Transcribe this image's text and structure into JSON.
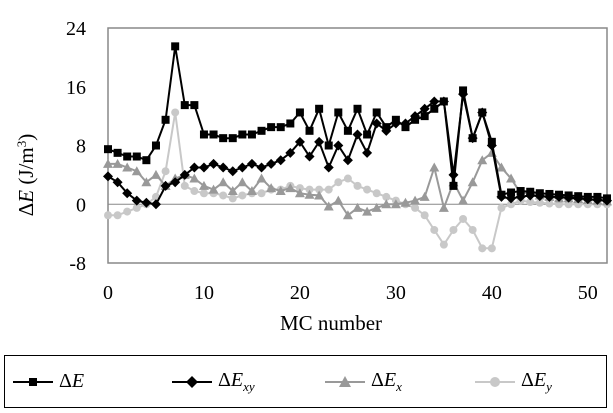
{
  "chart_data": {
    "type": "line",
    "ylabel": "ΔE (J/m³)",
    "xlabel": "MC number",
    "xlim": [
      0,
      52
    ],
    "ylim": [
      -8,
      24
    ],
    "xticks": [
      0,
      10,
      20,
      30,
      40,
      50
    ],
    "yticks": [
      -8,
      0,
      8,
      16,
      24
    ],
    "grid": false,
    "legend_position": "bottom (boxed, below chart)",
    "series": [
      {
        "name": "ΔE",
        "legend_main": "ΔE",
        "legend_sub": "",
        "color": "#000000",
        "marker": "square",
        "x": [
          0,
          1,
          2,
          3,
          4,
          5,
          6,
          7,
          8,
          9,
          10,
          11,
          12,
          13,
          14,
          15,
          16,
          17,
          18,
          19,
          20,
          21,
          22,
          23,
          24,
          25,
          26,
          27,
          28,
          29,
          30,
          31,
          32,
          33,
          34,
          35,
          36,
          37,
          38,
          39,
          40,
          41,
          42,
          43,
          44,
          45,
          46,
          47,
          48,
          49,
          50,
          51,
          52
        ],
        "y": [
          7.5,
          7,
          6.5,
          6.5,
          6,
          8,
          11.5,
          21.5,
          13.5,
          13.5,
          9.5,
          9.5,
          9,
          9,
          9.5,
          9.5,
          10,
          10.5,
          10.5,
          11,
          12.5,
          10,
          13,
          8,
          12.5,
          10,
          13,
          9.5,
          12.5,
          10.5,
          11.5,
          10.5,
          11.5,
          12,
          13,
          14,
          2.5,
          15.5,
          9,
          12.5,
          8.5,
          1.3,
          1.6,
          1.8,
          1.7,
          1.5,
          1.4,
          1.3,
          1.2,
          1.1,
          1,
          1,
          0.8
        ]
      },
      {
        "name": "ΔExy",
        "legend_main": "ΔE",
        "legend_sub": "xy",
        "color": "#000000",
        "marker": "diamond",
        "x": [
          0,
          1,
          2,
          3,
          4,
          5,
          6,
          7,
          8,
          9,
          10,
          11,
          12,
          13,
          14,
          15,
          16,
          17,
          18,
          19,
          20,
          21,
          22,
          23,
          24,
          25,
          26,
          27,
          28,
          29,
          30,
          31,
          32,
          33,
          34,
          35,
          36,
          37,
          38,
          39,
          40,
          41,
          42,
          43,
          44,
          45,
          46,
          47,
          48,
          49,
          50,
          51,
          52
        ],
        "y": [
          3.8,
          3,
          1.5,
          0.5,
          0.2,
          0,
          2.5,
          3,
          4,
          5,
          5,
          5.5,
          5,
          4.5,
          5,
          5.5,
          5,
          5.5,
          6,
          7,
          8.5,
          6.5,
          8.5,
          5,
          8,
          6,
          9.5,
          7,
          11,
          10,
          11,
          11,
          12,
          13,
          14,
          14,
          4,
          15,
          9,
          12.5,
          8,
          1,
          0.8,
          1,
          1.2,
          1.1,
          1,
          1,
          0.9,
          0.8,
          0.7,
          0.6,
          0.5
        ]
      },
      {
        "name": "ΔEx",
        "legend_main": "ΔE",
        "legend_sub": "x",
        "color": "#999999",
        "marker": "triangle",
        "x": [
          0,
          1,
          2,
          3,
          4,
          5,
          6,
          7,
          8,
          9,
          10,
          11,
          12,
          13,
          14,
          15,
          16,
          17,
          18,
          19,
          20,
          21,
          22,
          23,
          24,
          25,
          26,
          27,
          28,
          29,
          30,
          31,
          32,
          33,
          34,
          35,
          36,
          37,
          38,
          39,
          40,
          41,
          42,
          43,
          44,
          45,
          46,
          47,
          48,
          49,
          50,
          51,
          52
        ],
        "y": [
          5.5,
          5.5,
          5,
          4.5,
          3,
          4,
          2.5,
          3.5,
          4,
          3.5,
          2.5,
          2,
          3,
          1.8,
          3,
          1.8,
          3.5,
          2.2,
          1.8,
          2.2,
          1.5,
          1.3,
          1.2,
          -0.3,
          0.5,
          -1.5,
          -0.5,
          -1,
          -0.5,
          0,
          0,
          0.2,
          0.5,
          1,
          5,
          -0.5,
          3,
          0.5,
          3,
          6,
          7,
          5,
          3.5,
          1.5,
          1.6,
          1.2,
          1,
          0.8,
          0.8,
          0.7,
          0.6,
          0.5,
          0.4
        ]
      },
      {
        "name": "ΔEy",
        "legend_main": "ΔE",
        "legend_sub": "y",
        "color": "#c8c8c8",
        "marker": "circle",
        "x": [
          0,
          1,
          2,
          3,
          4,
          5,
          6,
          7,
          8,
          9,
          10,
          11,
          12,
          13,
          14,
          15,
          16,
          17,
          18,
          19,
          20,
          21,
          22,
          23,
          24,
          25,
          26,
          27,
          28,
          29,
          30,
          31,
          32,
          33,
          34,
          35,
          36,
          37,
          38,
          39,
          40,
          41,
          42,
          43,
          44,
          45,
          46,
          47,
          48,
          49,
          50,
          51,
          52
        ],
        "y": [
          -1.5,
          -1.5,
          -1,
          -0.5,
          0,
          1,
          4.5,
          12.5,
          2.5,
          1.8,
          1.5,
          1.5,
          1.2,
          0.8,
          1.2,
          1.5,
          1.5,
          2,
          2,
          2.5,
          2.2,
          2,
          2,
          2,
          3,
          3.5,
          2.5,
          2,
          1.5,
          1,
          0.5,
          0,
          -0.5,
          -1.5,
          -3.5,
          -5.5,
          -3.5,
          -2,
          -3.5,
          -6,
          -6,
          -0.5,
          0,
          0.5,
          0.3,
          0.2,
          0.1,
          0,
          0,
          0,
          0,
          0,
          0
        ]
      }
    ]
  }
}
